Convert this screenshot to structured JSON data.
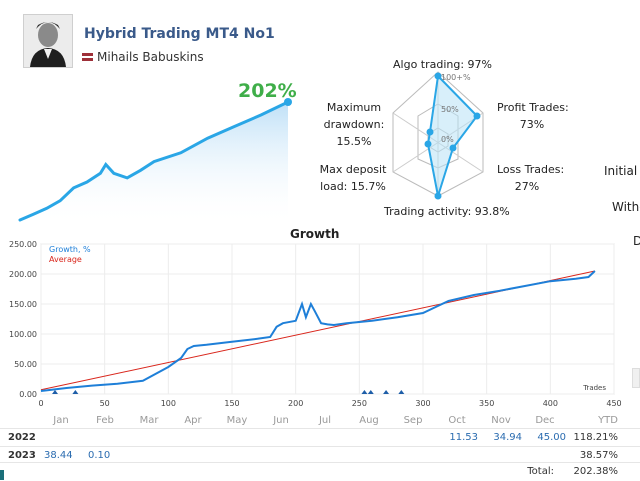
{
  "header": {
    "title": "Hybrid Trading MT4 No1",
    "author": "Mihails Babuskins",
    "gain": "202%"
  },
  "radar": {
    "algo": "Algo trading: 97%",
    "profit_l1": "Profit Trades:",
    "profit_l2": "73%",
    "loss_l1": "Loss Trades:",
    "loss_l2": "27%",
    "activity": "Trading activity: 93.8%",
    "deposit_l1": "Max deposit",
    "deposit_l2": "load: 15.7%",
    "drawdown_l1": "Maximum",
    "drawdown_l2": "drawdown:",
    "drawdown_l3": "15.5%",
    "ring_100": "100+%",
    "ring_50": "50%",
    "ring_0": "0%"
  },
  "side": {
    "initial": "Initial",
    "withdrawals": "Witho",
    "d": "D"
  },
  "chart_data": {
    "type": "line",
    "title": "Growth",
    "legend": [
      "Growth, %",
      "Average"
    ],
    "xlabel": "Trades",
    "xlim": [
      0,
      450
    ],
    "ylim": [
      0,
      250
    ],
    "x_ticks": [
      0,
      50,
      100,
      150,
      200,
      250,
      300,
      350,
      400,
      450
    ],
    "y_ticks": [
      "0.00",
      "50.00",
      "100.00",
      "150.00",
      "200.00",
      "250.00"
    ],
    "series": [
      {
        "name": "Growth, %",
        "color": "#1e7fd8",
        "x": [
          0,
          20,
          40,
          60,
          80,
          100,
          110,
          115,
          120,
          130,
          150,
          170,
          180,
          185,
          190,
          200,
          205,
          208,
          212,
          215,
          220,
          225,
          230,
          240,
          260,
          280,
          300,
          310,
          320,
          340,
          360,
          380,
          400,
          410,
          420,
          430,
          435
        ],
        "y": [
          5,
          10,
          14,
          17,
          22,
          45,
          60,
          75,
          80,
          82,
          87,
          92,
          95,
          112,
          118,
          122,
          150,
          128,
          150,
          138,
          118,
          116,
          115,
          118,
          122,
          128,
          135,
          145,
          155,
          165,
          172,
          180,
          188,
          190,
          192,
          195,
          205
        ]
      },
      {
        "name": "Average",
        "color": "#d9261c",
        "x": [
          0,
          435
        ],
        "y": [
          7,
          205
        ]
      }
    ]
  },
  "sparkline": {
    "x": [
      0,
      5,
      10,
      15,
      20,
      25,
      30,
      32,
      35,
      40,
      45,
      50,
      60,
      70,
      80,
      90,
      100
    ],
    "y": [
      0,
      10,
      20,
      33,
      55,
      65,
      80,
      95,
      80,
      72,
      85,
      100,
      115,
      140,
      160,
      180,
      202
    ]
  },
  "monthly": {
    "months": [
      "Jan",
      "Feb",
      "Mar",
      "Apr",
      "May",
      "Jun",
      "Jul",
      "Aug",
      "Sep",
      "Oct",
      "Nov",
      "Dec"
    ],
    "ytd_label": "YTD",
    "rows": [
      {
        "year": "2022",
        "values": [
          "",
          "",
          "",
          "",
          "",
          "",
          "",
          "",
          "",
          "11.53",
          "34.94",
          "45.00"
        ],
        "ytd": "118.21%"
      },
      {
        "year": "2023",
        "values": [
          "38.44",
          "0.10",
          "",
          "",
          "",
          "",
          "",
          "",
          "",
          "",
          "",
          ""
        ],
        "ytd": "38.57%"
      }
    ],
    "total_label": "Total:",
    "total_value": "202.38%"
  }
}
